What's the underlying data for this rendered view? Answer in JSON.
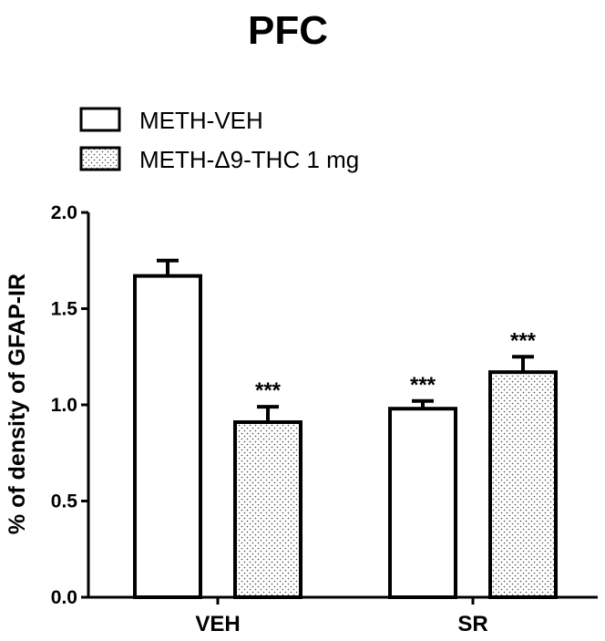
{
  "chart_data": {
    "type": "bar",
    "title": "PFC",
    "xlabel": "",
    "ylabel": "% of density of GFAP-IR",
    "ylim": [
      0,
      2.0
    ],
    "yticks": [
      "0.0",
      "0.5",
      "1.0",
      "1.5",
      "2.0"
    ],
    "categories": [
      "VEH",
      "SR"
    ],
    "legend_position": "top-left",
    "series": [
      {
        "name": "METH-VEH",
        "pattern": "white",
        "values": [
          1.67,
          0.98
        ],
        "errors": [
          0.08,
          0.04
        ],
        "annotations": [
          "",
          "***"
        ]
      },
      {
        "name": "METH-Δ9-THC 1 mg",
        "pattern": "dotted",
        "values": [
          0.91,
          1.17
        ],
        "errors": [
          0.08,
          0.08
        ],
        "annotations": [
          "***",
          "***"
        ]
      }
    ]
  }
}
